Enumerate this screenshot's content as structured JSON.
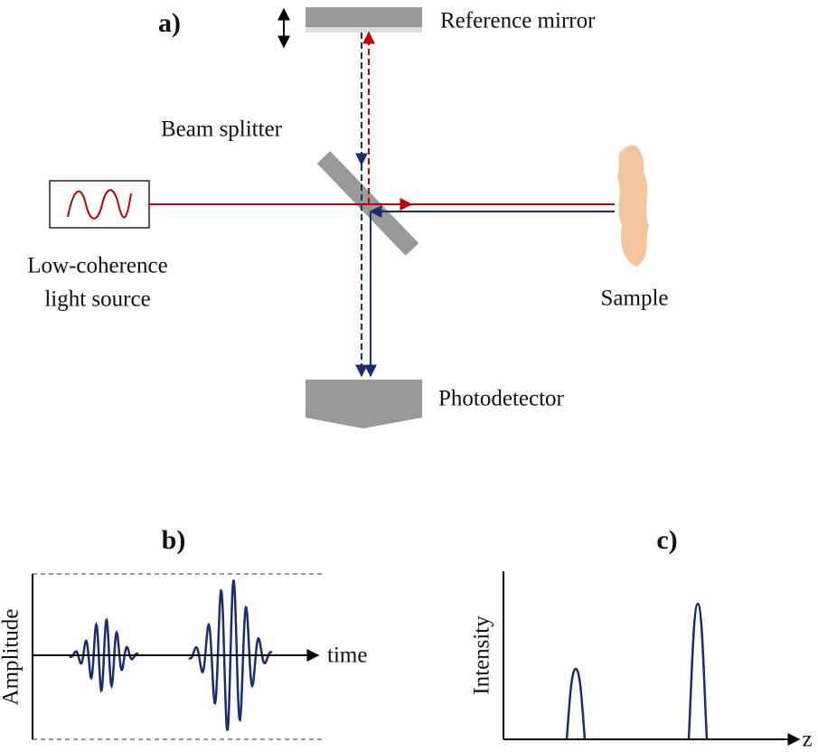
{
  "panel_a": {
    "label": "a)",
    "reference_mirror": "Reference mirror",
    "beam_splitter": "Beam splitter",
    "source": [
      "Low-coherence",
      "light source"
    ],
    "sample": "Sample",
    "photodetector": "Photodetector"
  },
  "panel_b": {
    "label": "b)",
    "y_axis": "Amplitude",
    "x_axis": "time"
  },
  "panel_c": {
    "label": "c)",
    "y_axis": "Intensity",
    "x_axis": "z"
  }
}
